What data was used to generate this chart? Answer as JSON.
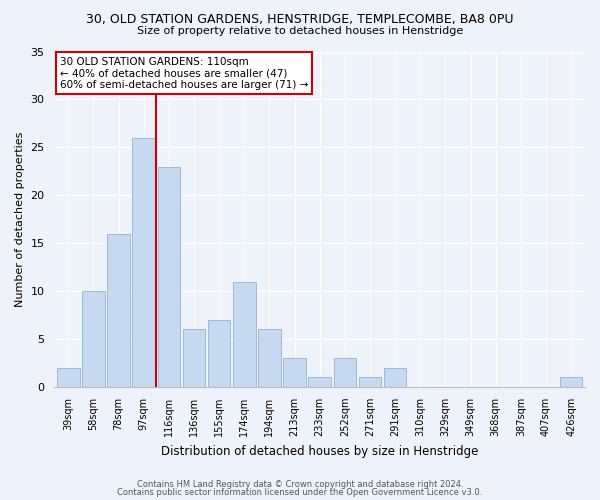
{
  "title": "30, OLD STATION GARDENS, HENSTRIDGE, TEMPLECOMBE, BA8 0PU",
  "subtitle": "Size of property relative to detached houses in Henstridge",
  "xlabel": "Distribution of detached houses by size in Henstridge",
  "ylabel": "Number of detached properties",
  "bar_labels": [
    "39sqm",
    "58sqm",
    "78sqm",
    "97sqm",
    "116sqm",
    "136sqm",
    "155sqm",
    "174sqm",
    "194sqm",
    "213sqm",
    "233sqm",
    "252sqm",
    "271sqm",
    "291sqm",
    "310sqm",
    "329sqm",
    "349sqm",
    "368sqm",
    "387sqm",
    "407sqm",
    "426sqm"
  ],
  "bar_values": [
    2,
    10,
    16,
    26,
    23,
    6,
    7,
    11,
    6,
    3,
    1,
    3,
    1,
    2,
    0,
    0,
    0,
    0,
    0,
    0,
    1
  ],
  "bar_color": "#c5d9f1",
  "bar_edgecolor": "#a0b8d8",
  "highlight_line_color": "#cc0000",
  "highlight_line_xindex": 3.5,
  "ylim": [
    0,
    35
  ],
  "yticks": [
    0,
    5,
    10,
    15,
    20,
    25,
    30,
    35
  ],
  "annotation_title": "30 OLD STATION GARDENS: 110sqm",
  "annotation_line1": "← 40% of detached houses are smaller (47)",
  "annotation_line2": "60% of semi-detached houses are larger (71) →",
  "annotation_box_color": "#ffffff",
  "annotation_box_edgecolor": "#cc0000",
  "footer1": "Contains HM Land Registry data © Crown copyright and database right 2024.",
  "footer2": "Contains public sector information licensed under the Open Government Licence v3.0.",
  "background_color": "#eef2fb"
}
